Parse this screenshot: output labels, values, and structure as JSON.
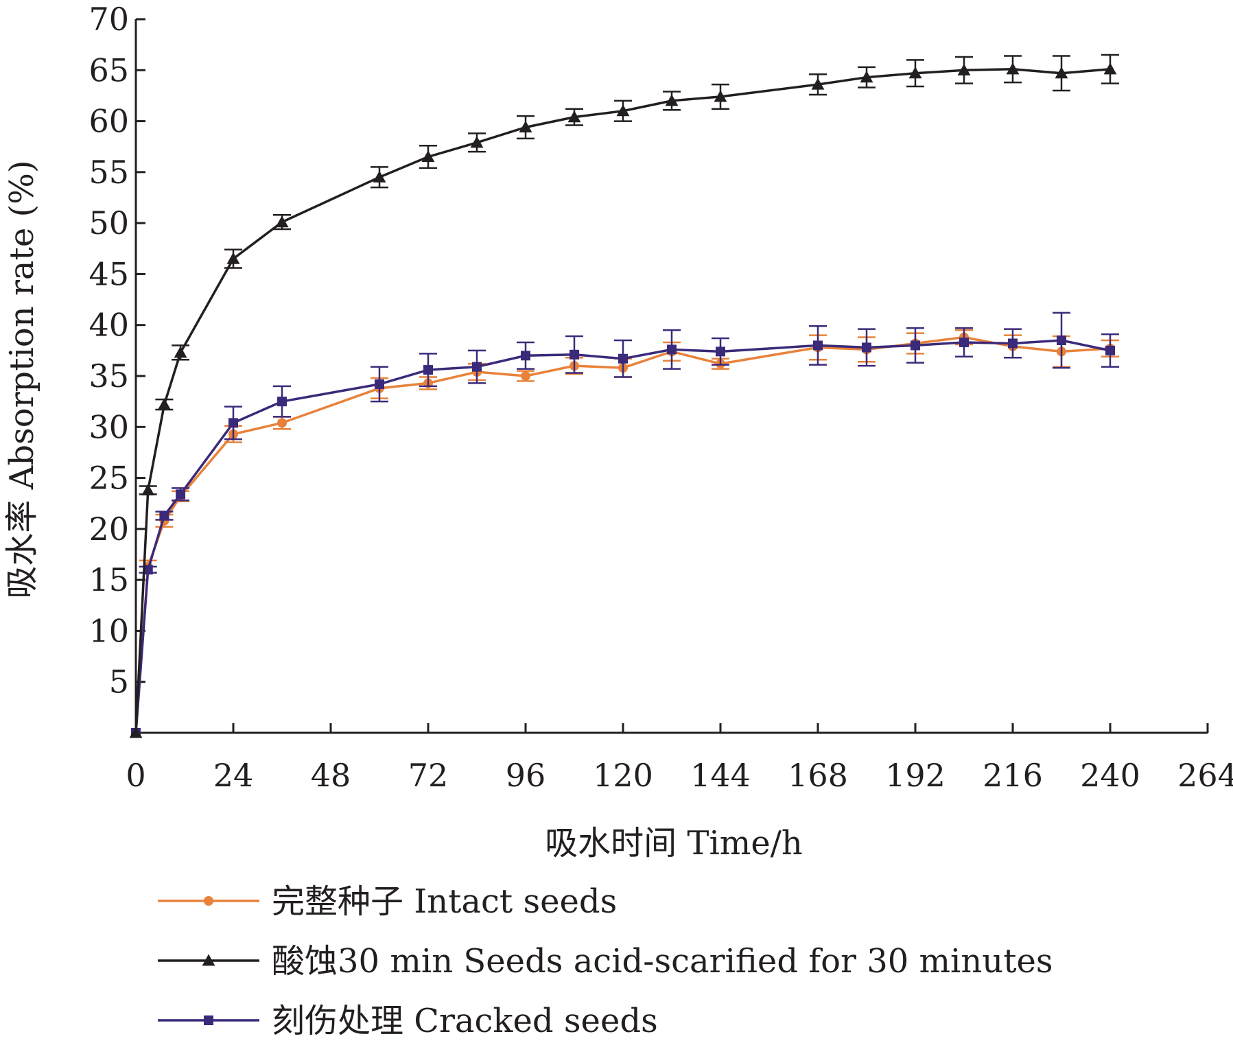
{
  "chart_data": {
    "type": "line",
    "title": "",
    "xlabel": "吸水时间  Time/h",
    "ylabel": "吸水率  Absorption rate (%)",
    "xlim": [
      0,
      264
    ],
    "ylim": [
      0,
      70
    ],
    "xticks": [
      0,
      24,
      48,
      72,
      96,
      120,
      144,
      168,
      192,
      216,
      240,
      264
    ],
    "yticks": [
      5,
      10,
      15,
      20,
      25,
      30,
      35,
      40,
      45,
      50,
      55,
      60,
      65,
      70
    ],
    "grid": false,
    "legend_position": "bottom",
    "x": [
      0,
      3,
      7,
      11,
      24,
      36,
      60,
      72,
      84,
      96,
      108,
      120,
      132,
      144,
      168,
      180,
      192,
      204,
      216,
      228,
      240
    ],
    "series": [
      {
        "name": "完整种子  Intact seeds",
        "color": "#e8823a",
        "marker": "circle",
        "values": [
          0,
          16.3,
          20.8,
          23.2,
          29.3,
          30.4,
          33.8,
          34.3,
          35.4,
          35.0,
          36.0,
          35.8,
          37.4,
          36.2,
          37.8,
          37.6,
          38.2,
          38.8,
          37.9,
          37.4,
          37.7
        ],
        "errors": [
          0,
          0.6,
          0.6,
          0.5,
          0.8,
          0.6,
          1.0,
          0.6,
          0.8,
          0.5,
          0.8,
          0.9,
          0.9,
          0.5,
          1.2,
          1.2,
          1.0,
          0.7,
          1.1,
          1.5,
          0.8
        ]
      },
      {
        "name": "酸蚀30 min  Seeds acid-scarified for 30 minutes",
        "color": "#231f20",
        "marker": "triangle",
        "values": [
          0,
          23.8,
          32.2,
          37.3,
          46.5,
          50.1,
          54.5,
          56.5,
          57.9,
          59.4,
          60.4,
          61.0,
          62.0,
          62.4,
          63.6,
          64.3,
          64.7,
          65.0,
          65.1,
          64.7,
          65.1
        ],
        "errors": [
          0,
          0.4,
          0.5,
          0.7,
          0.9,
          0.7,
          1.0,
          1.1,
          0.9,
          1.1,
          0.8,
          1.0,
          0.9,
          1.2,
          1.0,
          1.0,
          1.3,
          1.3,
          1.3,
          1.7,
          1.4
        ]
      },
      {
        "name": "刻伤处理  Cracked seeds",
        "color": "#3b2a7a",
        "marker": "square",
        "values": [
          0,
          16.0,
          21.3,
          23.4,
          30.4,
          32.5,
          34.2,
          35.6,
          35.9,
          37.0,
          37.1,
          36.7,
          37.6,
          37.4,
          38.0,
          37.8,
          38.0,
          38.3,
          38.2,
          38.5,
          37.5
        ],
        "errors": [
          0,
          0.3,
          0.4,
          0.6,
          1.6,
          1.5,
          1.7,
          1.6,
          1.6,
          1.3,
          1.8,
          1.8,
          1.9,
          1.3,
          1.9,
          1.8,
          1.7,
          1.4,
          1.4,
          2.7,
          1.6
        ]
      }
    ]
  }
}
